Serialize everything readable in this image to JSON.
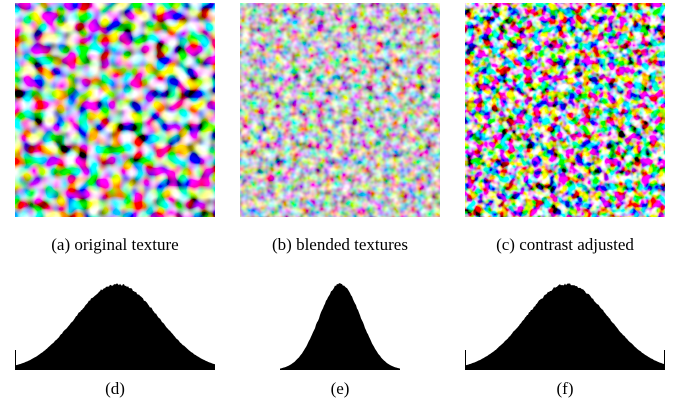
{
  "figure": {
    "panels": [
      {
        "caption": "(a) original texture"
      },
      {
        "caption": "(b) blended textures"
      },
      {
        "caption": "(c) contrast adjusted"
      },
      {
        "caption": "(d)"
      },
      {
        "caption": "(e)"
      },
      {
        "caption": "(f)"
      }
    ]
  }
}
